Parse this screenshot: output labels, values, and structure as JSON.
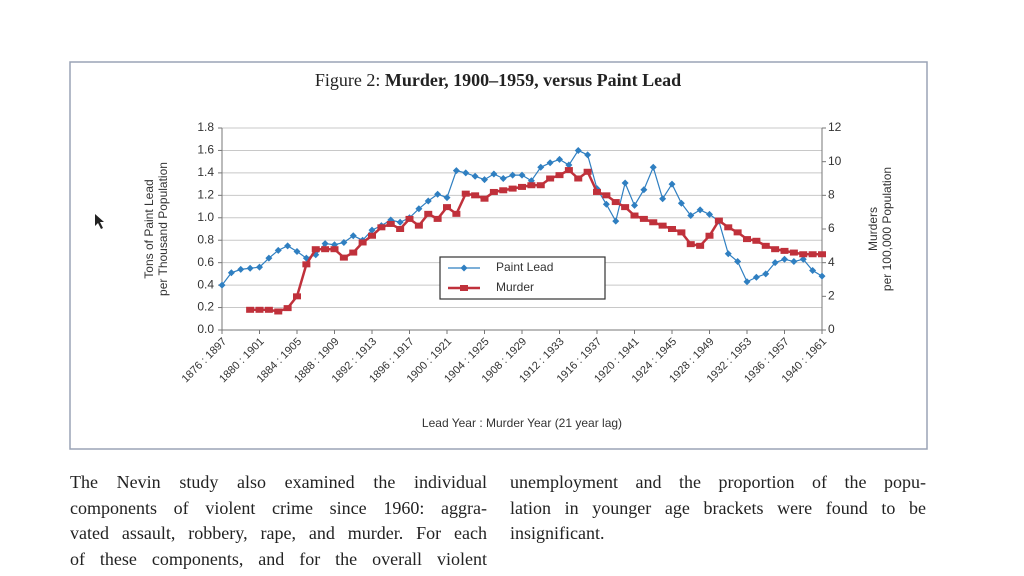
{
  "chart_data": {
    "type": "line",
    "figure_label": "Figure 2:",
    "title": "Murder, 1900–1959, versus Paint Lead",
    "ylabel": [
      "Tons of Paint Lead",
      "per Thousand Population"
    ],
    "y2label": [
      "Murders",
      "per 100,000 Population"
    ],
    "xlabel": "Lead Year : Murder Year (21 year lag)",
    "categories": [
      "1876 : 1897",
      null,
      null,
      null,
      "1880 : 1901",
      null,
      null,
      null,
      "1884 : 1905",
      null,
      null,
      null,
      "1888 : 1909",
      null,
      null,
      null,
      "1892 : 1913",
      null,
      null,
      null,
      "1896 : 1917",
      null,
      null,
      null,
      "1900 : 1921",
      null,
      null,
      null,
      "1904 : 1925",
      null,
      null,
      null,
      "1908 : 1929",
      null,
      null,
      null,
      "1912 : 1933",
      null,
      null,
      null,
      "1916 : 1937",
      null,
      null,
      null,
      "1920 : 1941",
      null,
      null,
      null,
      "1924 : 1945",
      null,
      null,
      null,
      "1928 : 1949",
      null,
      null,
      null,
      "1932 : 1953",
      null,
      null,
      null,
      "1936 : 1957",
      null,
      null,
      null,
      "1940 : 1961"
    ],
    "series": [
      {
        "name": "Paint Lead",
        "color": "#2f7fc1",
        "marker": "diamond",
        "values": [
          0.4,
          0.51,
          0.54,
          0.55,
          0.56,
          0.64,
          0.71,
          0.75,
          0.7,
          0.64,
          0.67,
          0.77,
          0.76,
          0.78,
          0.84,
          0.8,
          0.89,
          0.93,
          0.98,
          0.96,
          1.0,
          1.08,
          1.15,
          1.21,
          1.18,
          1.42,
          1.4,
          1.37,
          1.34,
          1.39,
          1.35,
          1.38,
          1.38,
          1.33,
          1.45,
          1.49,
          1.52,
          1.47,
          1.6,
          1.56,
          1.26,
          1.12,
          0.97,
          1.31,
          1.11,
          1.25,
          1.45,
          1.17,
          1.3,
          1.13,
          1.02,
          1.07,
          1.03,
          0.97,
          0.68,
          0.61,
          0.43,
          0.47,
          0.5,
          0.6,
          0.63,
          0.61,
          0.63,
          0.53,
          0.48
        ]
      },
      {
        "name": "Murder",
        "color": "#c0313b",
        "marker": "square",
        "axis": "y2",
        "values": [
          null,
          null,
          null,
          1.2,
          1.2,
          1.2,
          1.1,
          1.3,
          2.0,
          3.9,
          4.8,
          4.8,
          4.8,
          4.3,
          4.6,
          5.2,
          5.6,
          6.1,
          6.3,
          6.0,
          6.6,
          6.2,
          6.9,
          6.6,
          7.3,
          6.9,
          8.1,
          8.0,
          7.8,
          8.2,
          8.3,
          8.4,
          8.5,
          8.6,
          8.6,
          9.0,
          9.2,
          9.5,
          9.0,
          9.4,
          8.2,
          8.0,
          7.6,
          7.3,
          6.8,
          6.6,
          6.4,
          6.2,
          6.0,
          5.8,
          5.1,
          5.0,
          5.6,
          6.5,
          6.1,
          5.8,
          5.4,
          5.3,
          5.0,
          4.8,
          4.7,
          4.6,
          4.5,
          4.5,
          4.5
        ]
      }
    ],
    "ylim": [
      0,
      1.8
    ],
    "yticks": [
      {
        "value": 0,
        "label": "0.0"
      },
      {
        "value": 0.2,
        "label": "0.2"
      },
      {
        "value": 0.4,
        "label": "0.4"
      },
      {
        "value": 0.6,
        "label": "0.6"
      },
      {
        "value": 0.8,
        "label": "0.8"
      },
      {
        "value": 1,
        "label": "1.0"
      },
      {
        "value": 1.2,
        "label": "1.2"
      },
      {
        "value": 1.4,
        "label": "1.4"
      },
      {
        "value": 1.6,
        "label": "1.6"
      },
      {
        "value": 1.8,
        "label": "1.8"
      }
    ],
    "y2lim": [
      0,
      12
    ],
    "y2ticks": [
      0,
      2,
      4,
      6,
      8,
      10,
      12
    ],
    "grid": true,
    "legend": "center"
  },
  "body": {
    "left": [
      "The Nevin study also examined the individual",
      "components of violent crime since 1960: aggra-",
      "vated assault, robbery, rape, and murder. For each",
      "of these components, and for the overall violent"
    ],
    "right": [
      "unemployment and the proportion of the popu-",
      "lation in younger age brackets were found to be",
      "insignificant."
    ]
  }
}
